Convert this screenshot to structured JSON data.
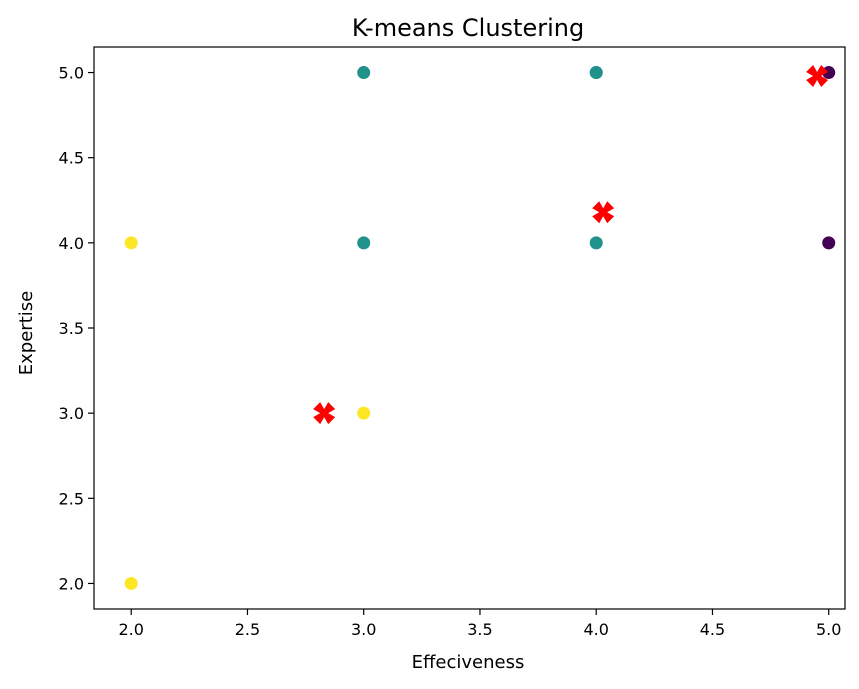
{
  "chart_data": {
    "type": "scatter",
    "title": "K-means Clustering",
    "xlabel": "Effeciveness",
    "ylabel": "Expertise",
    "xlim": [
      1.84,
      5.07
    ],
    "ylim": [
      1.85,
      5.15
    ],
    "xticks": [
      "2.0",
      "2.5",
      "3.0",
      "3.5",
      "4.0",
      "4.5",
      "5.0"
    ],
    "yticks": [
      "2.0",
      "2.5",
      "3.0",
      "3.5",
      "4.0",
      "4.5",
      "5.0"
    ],
    "grid": false,
    "colors": {
      "cluster_0": "#440154",
      "cluster_1": "#21918c",
      "cluster_2": "#fde725",
      "centroid": "#ff0000"
    },
    "points": [
      {
        "x": 2.0,
        "y": 4.0,
        "cluster": 2
      },
      {
        "x": 2.0,
        "y": 2.0,
        "cluster": 2
      },
      {
        "x": 3.0,
        "y": 3.0,
        "cluster": 2
      },
      {
        "x": 3.0,
        "y": 5.0,
        "cluster": 1
      },
      {
        "x": 3.0,
        "y": 4.0,
        "cluster": 1
      },
      {
        "x": 4.0,
        "y": 5.0,
        "cluster": 1
      },
      {
        "x": 4.0,
        "y": 5.0,
        "cluster": 1
      },
      {
        "x": 4.0,
        "y": 4.0,
        "cluster": 1
      },
      {
        "x": 5.0,
        "y": 5.0,
        "cluster": 0
      },
      {
        "x": 5.0,
        "y": 4.0,
        "cluster": 0
      }
    ],
    "centroids": [
      {
        "x": 2.83,
        "y": 3.0
      },
      {
        "x": 4.03,
        "y": 4.18
      },
      {
        "x": 4.95,
        "y": 4.98
      }
    ]
  }
}
